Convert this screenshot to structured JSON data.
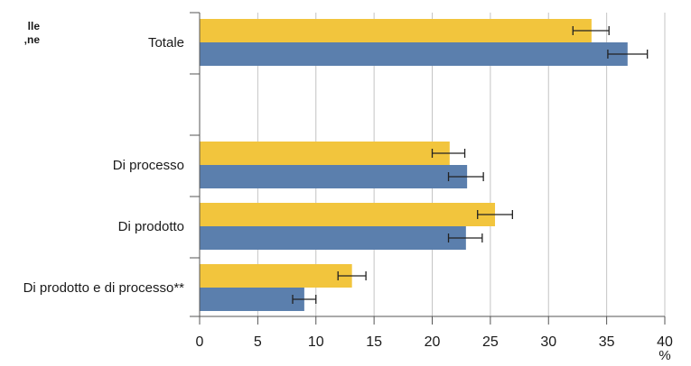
{
  "cropped_text": [
    "lle",
    "ne,"
  ],
  "chart_data": {
    "type": "bar",
    "orientation": "horizontal",
    "categories": [
      "Totale",
      "Di processo",
      "Di prodotto",
      "Di prodotto e di processo**"
    ],
    "gap_after_first_category": true,
    "series": [
      {
        "color": "#f2c53d",
        "values": [
          33.7,
          21.5,
          25.4,
          13.1
        ],
        "error_low": [
          32.1,
          20.0,
          23.9,
          11.9
        ],
        "error_high": [
          35.2,
          22.8,
          26.9,
          14.3
        ]
      },
      {
        "color": "#5b7fad",
        "values": [
          36.8,
          23.0,
          22.9,
          9.0
        ],
        "error_low": [
          35.1,
          21.4,
          21.4,
          8.0
        ],
        "error_high": [
          38.5,
          24.4,
          24.3,
          10.0
        ]
      }
    ],
    "xlim": [
      0,
      40
    ],
    "xticks": [
      0,
      5,
      10,
      15,
      20,
      25,
      30,
      35,
      40
    ],
    "xlabel": "%",
    "grid": "vertical",
    "legend": "none"
  }
}
